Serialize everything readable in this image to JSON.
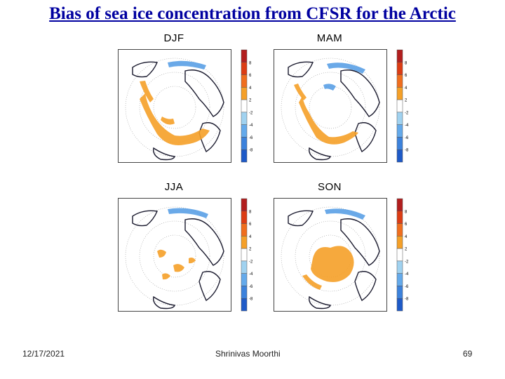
{
  "slide": {
    "title": "Bias of sea ice concentration from CFSR for the Arctic",
    "date": "12/17/2021",
    "author": "Shrinivas Moorthi",
    "page_number": "69"
  },
  "panels": [
    {
      "label": "DJF",
      "ticks": [
        "8",
        "6",
        "4",
        "2",
        "-2",
        "-4",
        "-6",
        "-8"
      ]
    },
    {
      "label": "MAM",
      "ticks": [
        "8",
        "6",
        "4",
        "2",
        "-2",
        "-4",
        "-6",
        "-8"
      ]
    },
    {
      "label": "JJA",
      "ticks": [
        "8",
        "6",
        "4",
        "2",
        "-2",
        "-4",
        "-6",
        "-8"
      ]
    },
    {
      "label": "SON",
      "ticks": [
        "8",
        "6",
        "4",
        "2",
        "-2",
        "-4",
        "-6",
        "-8"
      ]
    }
  ],
  "colorbar_colors": [
    "#b21e1e",
    "#dc3c14",
    "#f06e1e",
    "#f5a028",
    "#ffffff",
    "#a0d2f0",
    "#64aaeb",
    "#3c82dc",
    "#1e5ac8"
  ],
  "colors": {
    "title": "#0000a0",
    "bias_positive": "#f5a028",
    "bias_negative": "#5aa0e6",
    "coastline": "#1a1a2e"
  }
}
